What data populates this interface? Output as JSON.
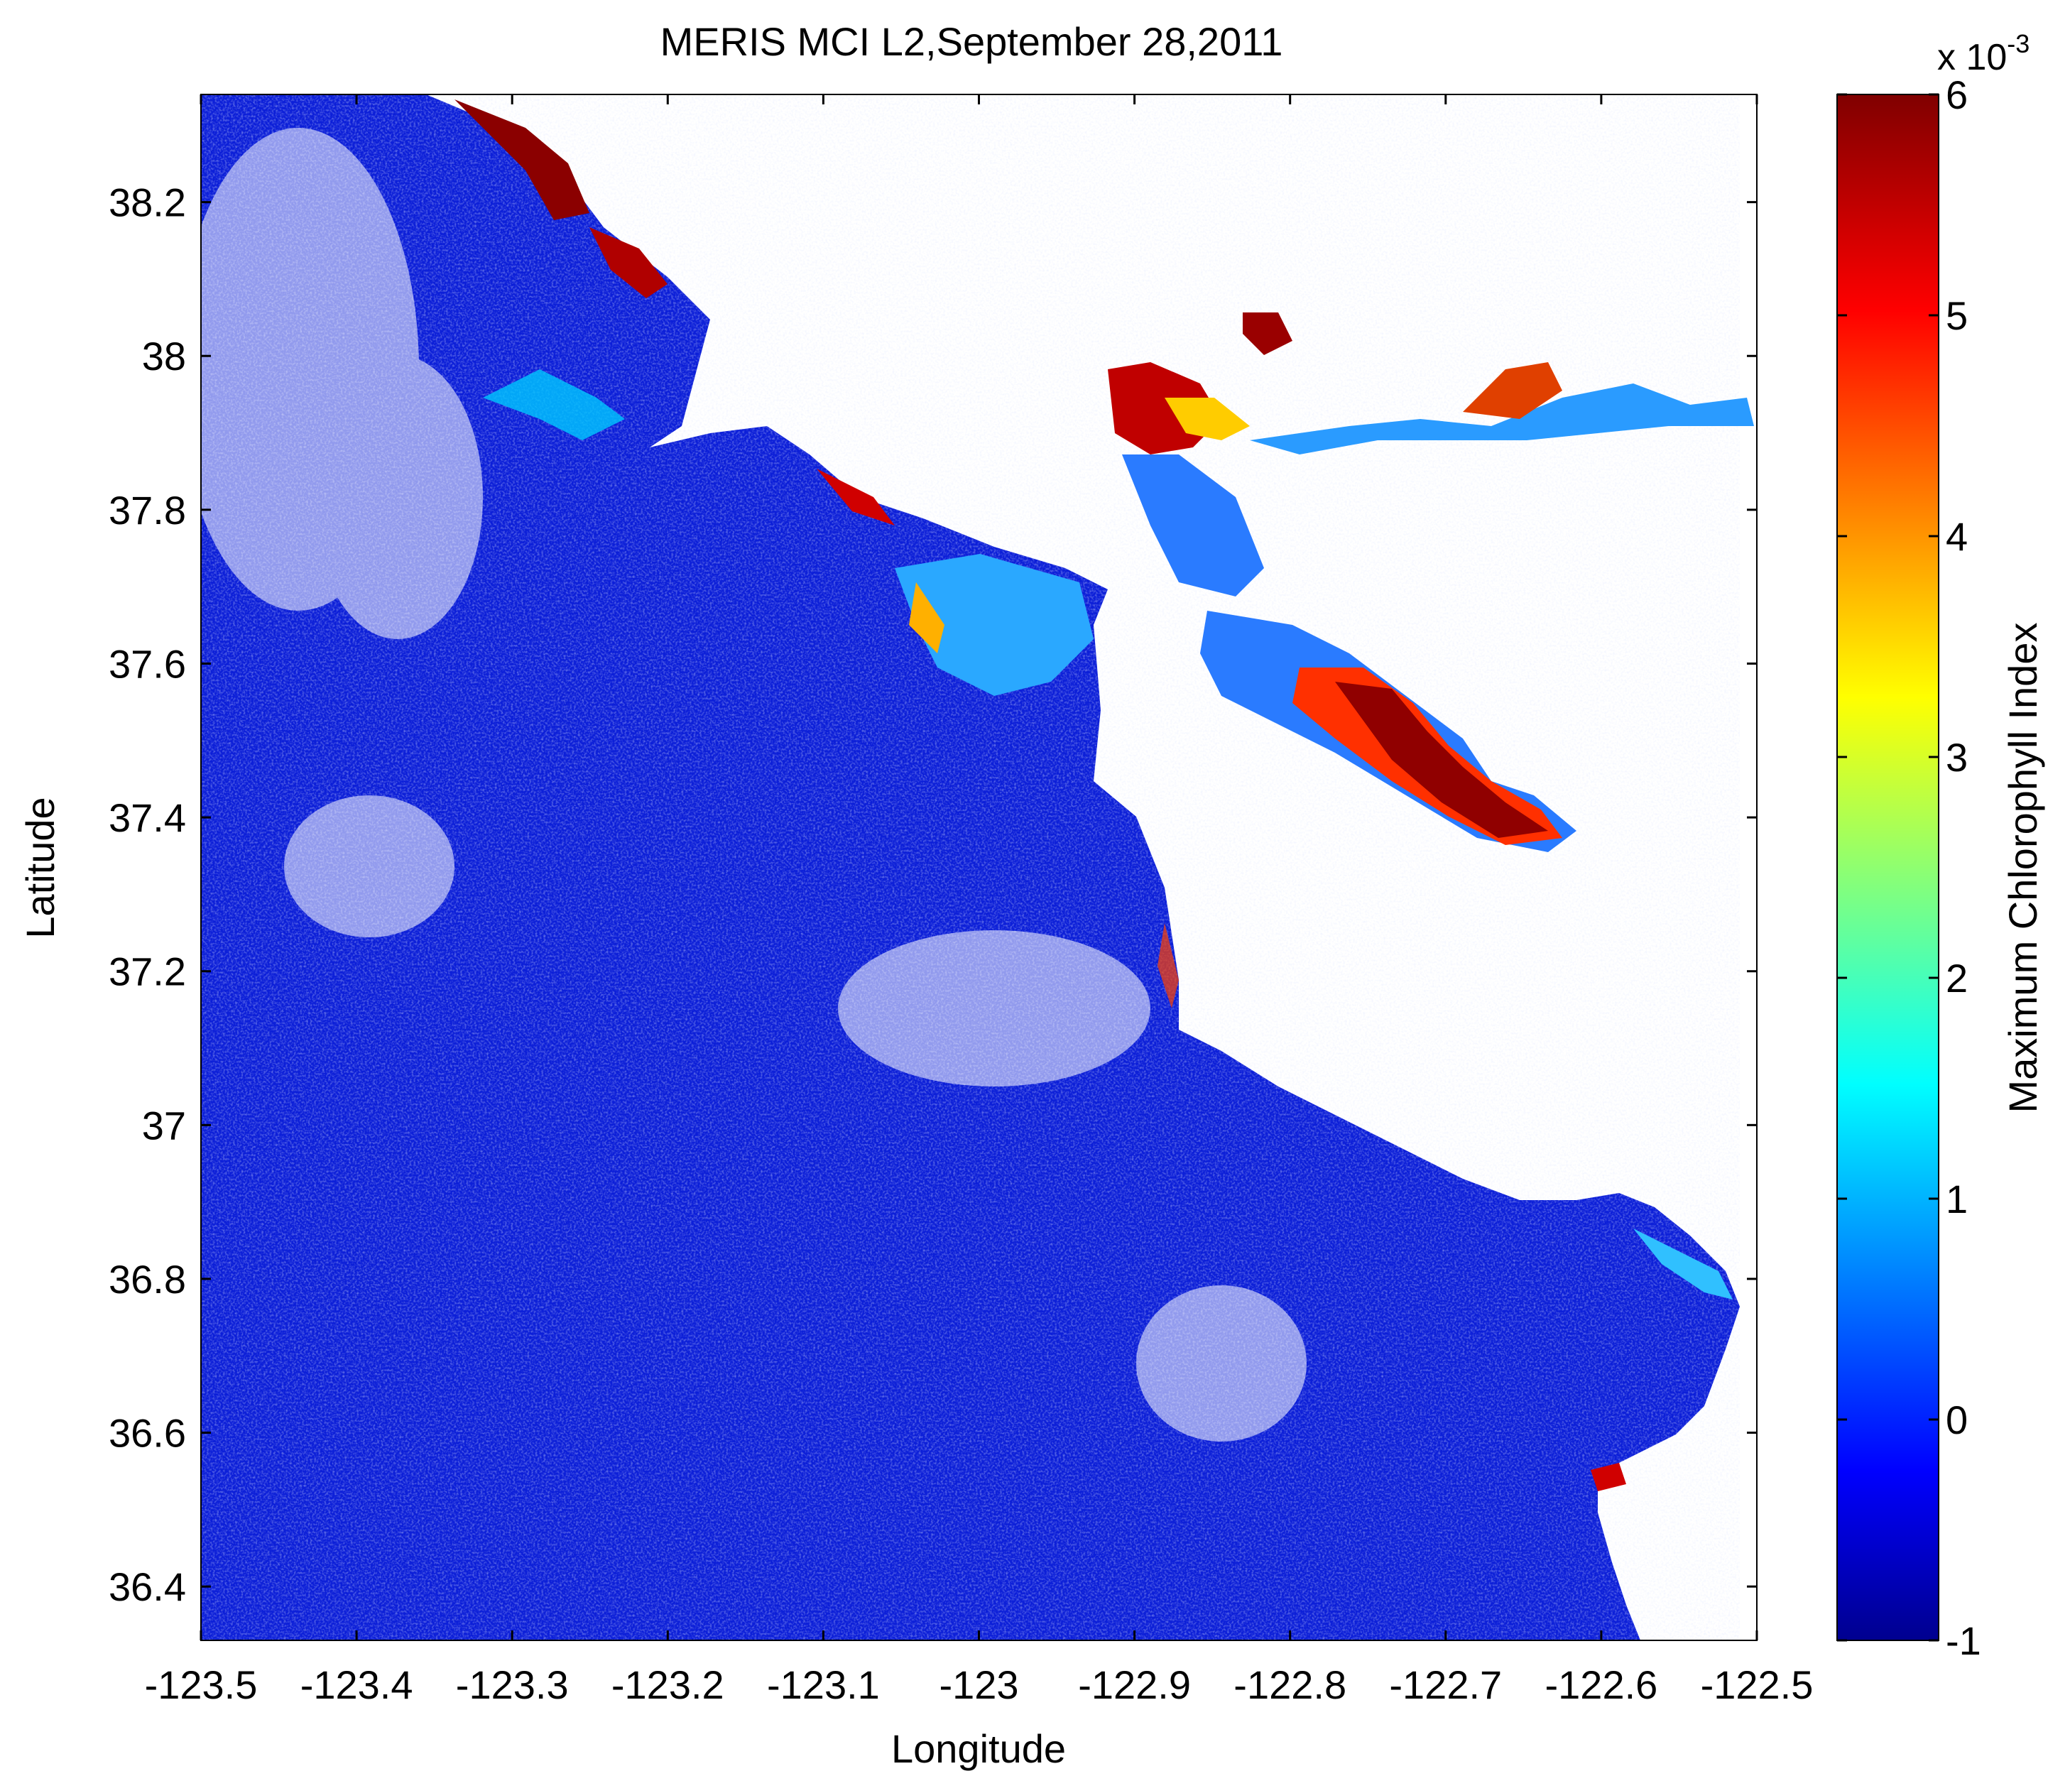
{
  "chart_data": {
    "type": "heatmap",
    "title": "MERIS MCI L2,September 28,2011",
    "xlabel": "Longitude",
    "ylabel": "Latitude",
    "xlim": [
      -123.5,
      -122.5
    ],
    "ylim": [
      36.33,
      38.34
    ],
    "x_ticks": [
      -123.5,
      -123.4,
      -123.3,
      -123.2,
      -123.1,
      -123.0,
      -122.9,
      -122.8,
      -122.7,
      -122.6,
      -122.5
    ],
    "x_tick_labels": [
      "-123.5",
      "-123.4",
      "-123.3",
      "-123.2",
      "-123.1",
      "-123",
      "-122.9",
      "-122.8",
      "-122.7",
      "-122.6",
      "-122.5"
    ],
    "y_ticks": [
      36.4,
      36.6,
      36.8,
      37.0,
      37.2,
      37.4,
      37.6,
      37.8,
      38.0,
      38.2
    ],
    "y_tick_labels": [
      "36.4",
      "36.6",
      "36.8",
      "37",
      "37.2",
      "37.4",
      "37.6",
      "37.8",
      "38",
      "38.2"
    ],
    "colorbar": {
      "label": "Maximum Chlorophyll Index",
      "exponent_label": "x 10",
      "exponent_power": "-3",
      "range": [
        -1,
        6
      ],
      "ticks": [
        -1,
        0,
        1,
        2,
        3,
        4,
        5,
        6
      ],
      "tick_labels": [
        "-1",
        "0",
        "1",
        "2",
        "3",
        "4",
        "5",
        "6"
      ],
      "colormap": "jet"
    },
    "land_color": "#ffffff",
    "grid": false
  }
}
